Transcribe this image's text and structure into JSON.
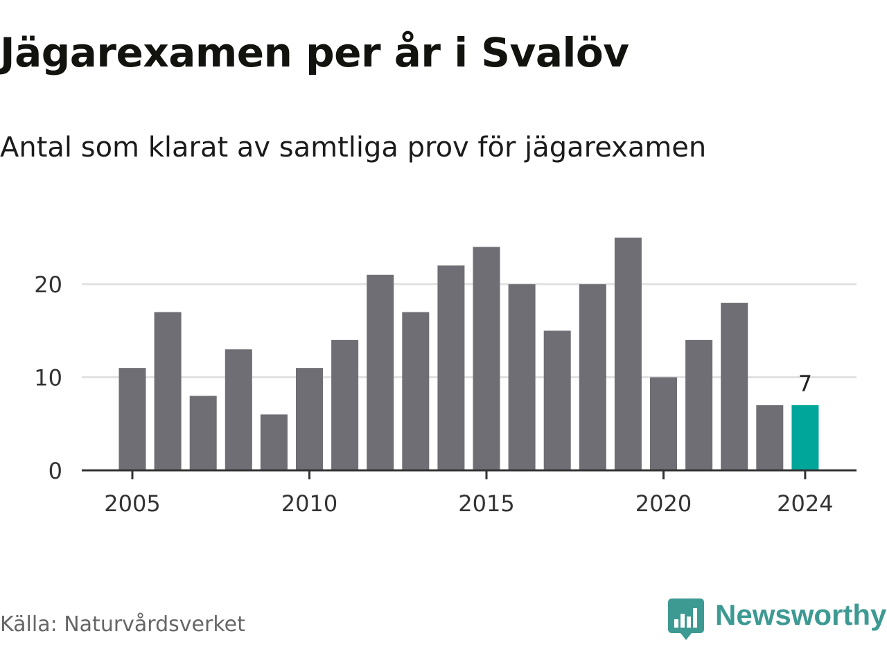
{
  "title": "Jägarexamen per år i Svalöv",
  "subtitle": "Antal som klarat av samtliga prov för jägarexamen",
  "source": "Källa: Naturvårdsverket",
  "brand": {
    "name": "Newsworthy",
    "logo_icon": "bar-chart-speech-bubble-icon",
    "color": "#3d9a92"
  },
  "colors": {
    "bar": "#6e6e74",
    "highlight": "#00a69a",
    "grid": "#e1e1e1",
    "axis": "#333333"
  },
  "chart_data": {
    "type": "bar",
    "x": [
      2005,
      2006,
      2007,
      2008,
      2009,
      2010,
      2011,
      2012,
      2013,
      2014,
      2015,
      2016,
      2017,
      2018,
      2019,
      2020,
      2021,
      2022,
      2023,
      2024
    ],
    "values": [
      11,
      17,
      8,
      13,
      6,
      11,
      14,
      21,
      17,
      22,
      24,
      20,
      15,
      20,
      25,
      10,
      14,
      18,
      7,
      7
    ],
    "xticks": [
      "2005",
      "2010",
      "2015",
      "2020",
      "2024"
    ],
    "yticks": [
      "0",
      "10",
      "20"
    ],
    "ylim": [
      0,
      25
    ],
    "grid": true,
    "highlight": {
      "x": 2024,
      "label": "7"
    }
  }
}
